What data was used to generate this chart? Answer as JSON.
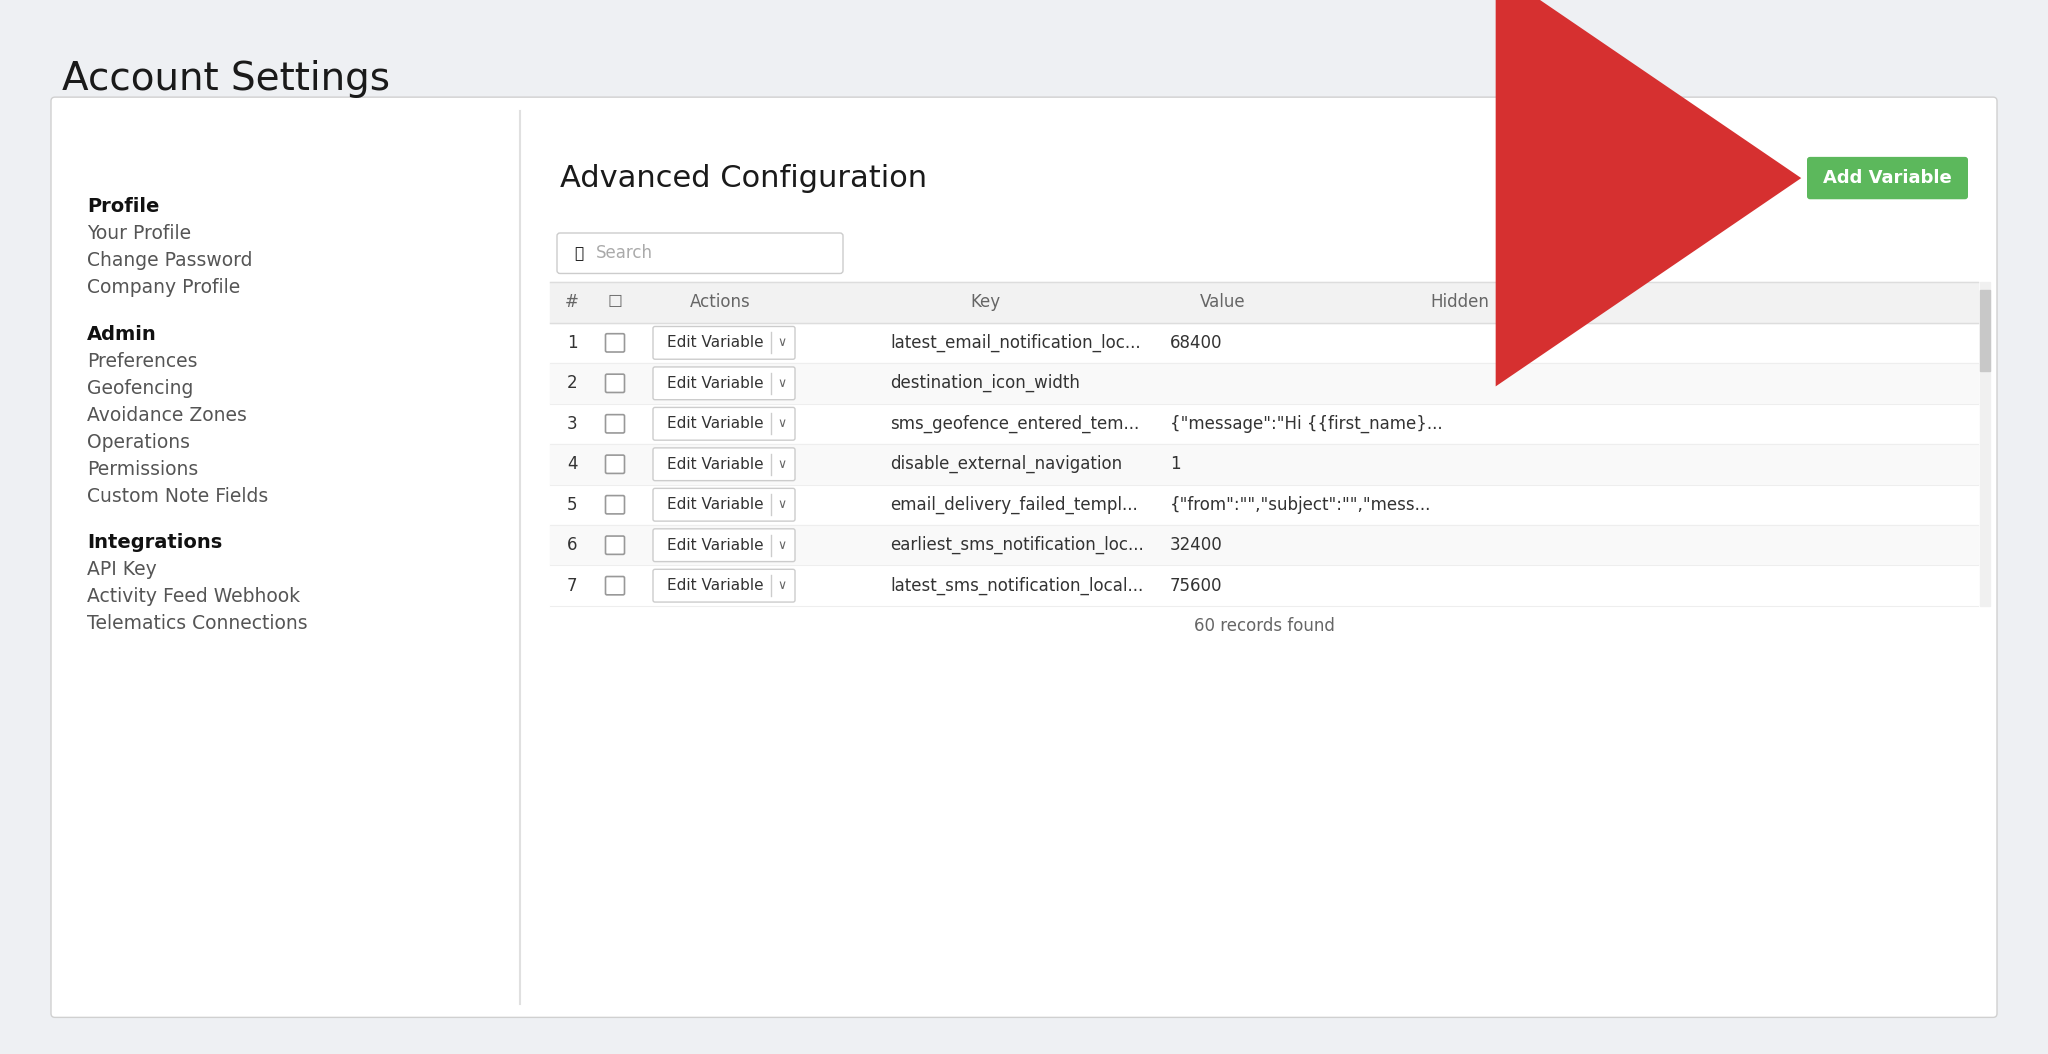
{
  "bg_color": "#eef0f3",
  "card_bg": "#ffffff",
  "title": "Account Settings",
  "title_fontsize": 28,
  "title_color": "#1a1a1a",
  "section_title": "Advanced Configuration",
  "section_title_fontsize": 22,
  "sidebar_items": [
    {
      "text": "Profile",
      "bold": true
    },
    {
      "text": "Your Profile",
      "bold": false
    },
    {
      "text": "Change Password",
      "bold": false
    },
    {
      "text": "Company Profile",
      "bold": false
    },
    {
      "text": "",
      "bold": false
    },
    {
      "text": "Admin",
      "bold": true
    },
    {
      "text": "Preferences",
      "bold": false
    },
    {
      "text": "Geofencing",
      "bold": false
    },
    {
      "text": "Avoidance Zones",
      "bold": false
    },
    {
      "text": "Operations",
      "bold": false
    },
    {
      "text": "Permissions",
      "bold": false
    },
    {
      "text": "Custom Note Fields",
      "bold": false
    },
    {
      "text": "",
      "bold": false
    },
    {
      "text": "Integrations",
      "bold": true
    },
    {
      "text": "API Key",
      "bold": false
    },
    {
      "text": "Activity Feed Webhook",
      "bold": false
    },
    {
      "text": "Telematics Connections",
      "bold": false
    }
  ],
  "table_rows": [
    {
      "num": "1",
      "key": "latest_email_notification_loc...",
      "value": "68400"
    },
    {
      "num": "2",
      "key": "destination_icon_width",
      "value": ""
    },
    {
      "num": "3",
      "key": "sms_geofence_entered_tem...",
      "value": "{\"message\":\"Hi {{first_name}..."
    },
    {
      "num": "4",
      "key": "disable_external_navigation",
      "value": "1"
    },
    {
      "num": "5",
      "key": "email_delivery_failed_templ...",
      "value": "{\"from\":\"\",\"subject\":\"\",\"mess..."
    },
    {
      "num": "6",
      "key": "earliest_sms_notification_loc...",
      "value": "32400"
    },
    {
      "num": "7",
      "key": "latest_sms_notification_local...",
      "value": "75600"
    }
  ],
  "footer_text": "60 records found",
  "add_btn_text": "Add Variable",
  "add_btn_color": "#5cb85c",
  "add_btn_text_color": "#ffffff",
  "arrow_color": "#d63030",
  "search_placeholder": "Search",
  "text_color": "#333333",
  "sidebar_text_color": "#555555",
  "sidebar_bold_color": "#111111",
  "header_col_color": "#666666",
  "table_border_color": "#dddddd",
  "row_sep_color": "#eeeeee"
}
